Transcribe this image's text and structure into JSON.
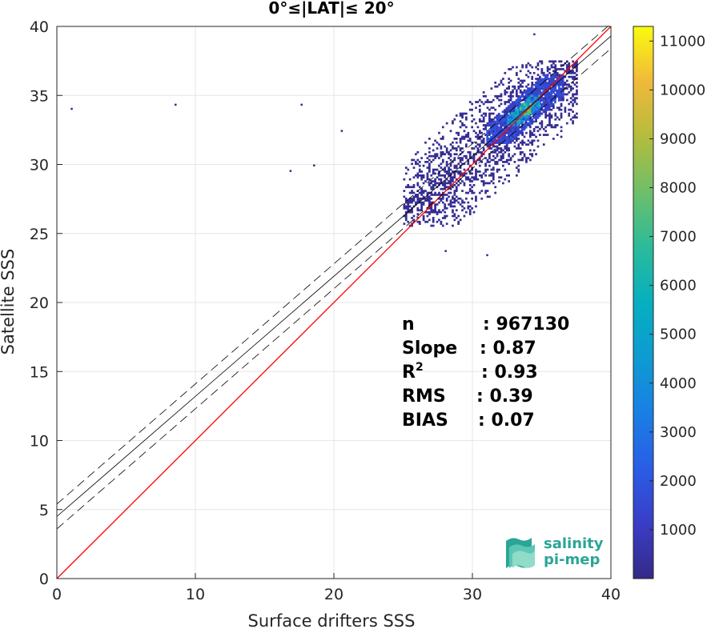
{
  "chart_data": {
    "type": "heatmap",
    "title": "0°≤|LAT|≤ 20°",
    "xlabel": "Surface drifters SSS",
    "ylabel": "Satellite SSS",
    "xlim": [
      0,
      40
    ],
    "ylim": [
      0,
      40
    ],
    "xticks": [
      0,
      10,
      20,
      30,
      40
    ],
    "yticks": [
      0,
      5,
      10,
      15,
      20,
      25,
      30,
      35,
      40
    ],
    "grid": true,
    "colorbar": {
      "ticks": [
        1000,
        2000,
        3000,
        4000,
        5000,
        6000,
        7000,
        8000,
        9000,
        10000,
        11000
      ],
      "range": [
        0,
        11300
      ],
      "colormap": "parula"
    },
    "density_regions": [
      {
        "x": [
          25,
          37.5
        ],
        "y": [
          25.5,
          37.5
        ],
        "level": "low",
        "value": 200
      },
      {
        "x": [
          31,
          36.5
        ],
        "y": [
          31.5,
          36.5
        ],
        "level": "medium",
        "value": 1500
      },
      {
        "x": [
          32.5,
          34.8
        ],
        "y": [
          32.8,
          35.0
        ],
        "level": "high",
        "value": 4500
      },
      {
        "x": [
          33.4,
          34.2
        ],
        "y": [
          33.6,
          34.4
        ],
        "level": "peak",
        "value": 6500
      }
    ],
    "outliers": [
      [
        1,
        34.1
      ],
      [
        8.5,
        34.4
      ],
      [
        17.6,
        34.4
      ],
      [
        20.5,
        32.5
      ],
      [
        18.5,
        30
      ],
      [
        16.8,
        29.6
      ],
      [
        31,
        23.5
      ],
      [
        28,
        23.8
      ],
      [
        34.4,
        39.5
      ]
    ],
    "lines": [
      {
        "name": "identity",
        "color": "#ff0000",
        "style": "solid",
        "intercept": 0,
        "slope": 1
      },
      {
        "name": "fit",
        "color": "#000000",
        "style": "solid",
        "intercept": 4.5,
        "slope": 0.87
      },
      {
        "name": "fit-upper",
        "color": "#000000",
        "style": "dashed",
        "intercept": 5.4,
        "slope": 0.87
      },
      {
        "name": "fit-lower",
        "color": "#000000",
        "style": "dashed",
        "intercept": 3.6,
        "slope": 0.87
      }
    ],
    "stats": [
      {
        "label": "n",
        "value": ": 967130"
      },
      {
        "label": "Slope",
        "value": ": 0.87"
      },
      {
        "label": "R",
        "sup": "2",
        "value": ": 0.93"
      },
      {
        "label": "RMS",
        "value": ": 0.39"
      },
      {
        "label": "BIAS",
        "value": ": 0.07"
      }
    ]
  },
  "logo": {
    "line1": "salinity",
    "line2": "pi-mep",
    "color": "#2ba596"
  }
}
